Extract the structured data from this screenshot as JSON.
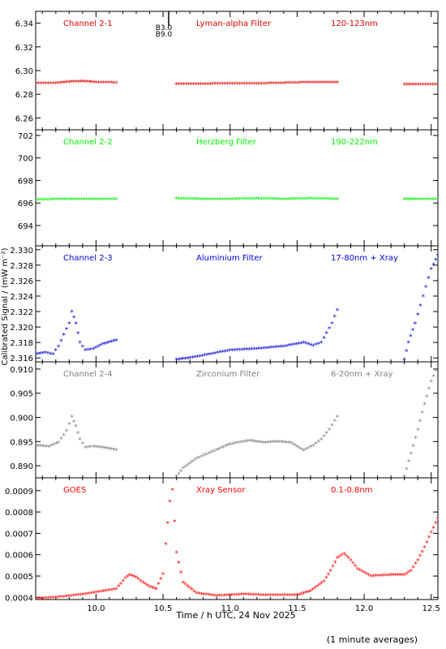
{
  "figure": {
    "ylabel": "Calibrated Signal / (mW m⁻²)",
    "xlabel": "Time / h UTC, 24 Nov 2025",
    "footnote": "(1 minute averages)",
    "flare_annotation": [
      "B3.0",
      "B9.0"
    ],
    "xticks": [
      "10.0",
      "10.5",
      "11.0",
      "11.5",
      "12.0",
      "12.5"
    ]
  },
  "chart_data": [
    {
      "type": "scatter",
      "labels": [
        "Channel 2-1",
        "Lyman-alpha Filter",
        "120-123nm"
      ],
      "color": "#e00000",
      "ylim": [
        6.25,
        6.35
      ],
      "yticks": [
        "6.26",
        "6.28",
        "6.30",
        "6.32",
        "6.34"
      ],
      "series": [
        {
          "x": [
            9.55,
            9.7,
            9.8,
            9.9,
            10.0,
            10.15
          ],
          "y": [
            6.2895,
            6.2895,
            6.2905,
            6.291,
            6.2902,
            6.2898
          ]
        },
        {
          "x": [
            10.6,
            10.8,
            11.0,
            11.2,
            11.4,
            11.6,
            11.8
          ],
          "y": [
            6.2888,
            6.2888,
            6.289,
            6.289,
            6.2895,
            6.2902,
            6.2902
          ]
        },
        {
          "x": [
            12.3,
            12.4,
            12.55
          ],
          "y": [
            6.2882,
            6.2885,
            6.2885
          ]
        }
      ]
    },
    {
      "type": "scatter",
      "labels": [
        "Channel 2-2",
        "Herzberg Filter",
        "190-222nm"
      ],
      "color": "#00ee00",
      "ylim": [
        692.2,
        702.5
      ],
      "yticks": [
        "694",
        "696",
        "698",
        "700",
        "702"
      ],
      "series": [
        {
          "x": [
            9.55,
            9.8,
            10.0,
            10.15
          ],
          "y": [
            696.3,
            696.35,
            696.35,
            696.35
          ]
        },
        {
          "x": [
            10.6,
            10.8,
            11.0,
            11.2,
            11.4,
            11.6,
            11.8
          ],
          "y": [
            696.4,
            696.35,
            696.35,
            696.4,
            696.35,
            696.4,
            696.35
          ]
        },
        {
          "x": [
            12.3,
            12.4,
            12.55
          ],
          "y": [
            696.35,
            696.35,
            696.35
          ]
        }
      ]
    },
    {
      "type": "scatter",
      "labels": [
        "Channel 2-3",
        "Aluminium Filter",
        "17-80nm + Xray"
      ],
      "color": "#0000d0",
      "ylim": [
        2.3155,
        2.3305
      ],
      "yticks": [
        "2.316",
        "2.318",
        "2.320",
        "2.322",
        "2.324",
        "2.326",
        "2.328",
        "2.330"
      ],
      "series": [
        {
          "x": [
            9.55,
            9.62,
            9.68,
            9.72,
            9.76,
            9.8,
            9.82,
            9.85,
            9.88,
            9.92,
            9.98,
            10.05,
            10.15
          ],
          "y": [
            2.3165,
            2.3167,
            2.3165,
            2.3175,
            2.319,
            2.3205,
            2.322,
            2.3205,
            2.318,
            2.317,
            2.3172,
            2.3178,
            2.3183
          ]
        },
        {
          "x": [
            10.6,
            10.7,
            10.85,
            11.0,
            11.2,
            11.4,
            11.55,
            11.62,
            11.68,
            11.72,
            11.76,
            11.8
          ],
          "y": [
            2.3158,
            2.316,
            2.3165,
            2.317,
            2.3172,
            2.3175,
            2.318,
            2.3176,
            2.318,
            2.3192,
            2.3205,
            2.3222
          ]
        },
        {
          "x": [
            12.3,
            12.33,
            12.38,
            12.42,
            12.46,
            12.5,
            12.55
          ],
          "y": [
            2.3158,
            2.318,
            2.3205,
            2.3228,
            2.3252,
            2.3275,
            2.3293
          ]
        }
      ]
    },
    {
      "type": "scatter",
      "labels": [
        "Channel 2-4",
        "Zirconium Filter",
        "6-20nm + Xray"
      ],
      "color": "#808080",
      "ylim": [
        0.8875,
        0.9115
      ],
      "yticks": [
        "0.890",
        "0.895",
        "0.900",
        "0.905",
        "0.910"
      ],
      "series": [
        {
          "x": [
            9.55,
            9.65,
            9.72,
            9.78,
            9.82,
            9.85,
            9.88,
            9.92,
            9.98,
            10.05,
            10.15
          ],
          "y": [
            0.8942,
            0.894,
            0.8948,
            0.8972,
            0.9002,
            0.8982,
            0.8955,
            0.8938,
            0.894,
            0.8938,
            0.8933
          ]
        },
        {
          "x": [
            10.6,
            10.65,
            10.75,
            10.9,
            11.0,
            11.15,
            11.25,
            11.35,
            11.45,
            11.55,
            11.62,
            11.68,
            11.74,
            11.8
          ],
          "y": [
            0.8878,
            0.8895,
            0.8915,
            0.8933,
            0.8945,
            0.8952,
            0.8948,
            0.895,
            0.8948,
            0.8932,
            0.8942,
            0.8955,
            0.8975,
            0.9002
          ]
        },
        {
          "x": [
            12.3,
            12.35,
            12.4,
            12.45,
            12.5,
            12.55
          ],
          "y": [
            0.8878,
            0.8925,
            0.8975,
            0.9028,
            0.9075,
            0.9108
          ]
        }
      ]
    },
    {
      "type": "scatter",
      "labels": [
        "GOES",
        "Xray Sensor",
        "0.1-0.8nm"
      ],
      "color": "#ff0000",
      "ylim": [
        0.00039,
        0.00096
      ],
      "yticks": [
        "0.0004",
        "0.0005",
        "0.0006",
        "0.0007",
        "0.0008",
        "0.0009"
      ],
      "series": [
        {
          "x": [
            9.55,
            9.7,
            9.85,
            10.0,
            10.15,
            10.22,
            10.25,
            10.3,
            10.35,
            10.4,
            10.45,
            10.5,
            10.52,
            10.55,
            10.57,
            10.6,
            10.65,
            10.75,
            10.9,
            11.1,
            11.3,
            11.5,
            11.6,
            11.7,
            11.75,
            11.8,
            11.85,
            11.9,
            11.95,
            12.05,
            12.2,
            12.3,
            12.35,
            12.4,
            12.45,
            12.5,
            12.55
          ],
          "y": [
            0.000395,
            0.0004,
            0.00041,
            0.000425,
            0.00044,
            0.00049,
            0.000505,
            0.000495,
            0.00047,
            0.00045,
            0.00044,
            0.00051,
            0.00065,
            0.00085,
            0.000905,
            0.00061,
            0.00047,
            0.00042,
            0.000408,
            0.000415,
            0.00041,
            0.00041,
            0.00043,
            0.000475,
            0.000525,
            0.000585,
            0.000605,
            0.000575,
            0.000535,
            0.0005,
            0.000505,
            0.000505,
            0.000525,
            0.000575,
            0.000635,
            0.000705,
            0.00077
          ]
        }
      ]
    }
  ]
}
